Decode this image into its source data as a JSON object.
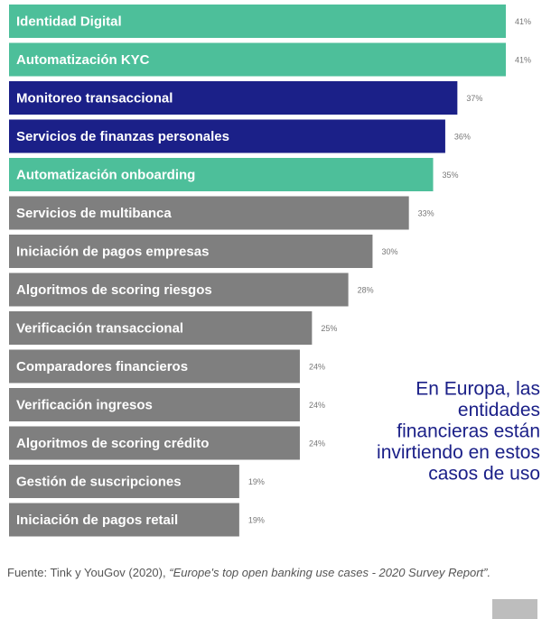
{
  "chart_data": {
    "type": "bar",
    "orientation": "horizontal",
    "categories": [
      "Identidad Digital",
      "Automatización KYC",
      "Monitoreo transaccional",
      "Servicios de finanzas personales",
      "Automatización onboarding",
      "Servicios de multibanca",
      "Iniciación de pagos empresas",
      "Algoritmos de scoring riesgos",
      "Verificación transaccional",
      "Comparadores financieros",
      "Verificación ingresos",
      "Algoritmos de scoring crédito",
      "Gestión de suscripciones",
      "Iniciación de pagos retail"
    ],
    "values": [
      41,
      41,
      37,
      36,
      35,
      33,
      30,
      28,
      25,
      24,
      24,
      24,
      19,
      19
    ],
    "value_labels": [
      "41%",
      "41%",
      "37%",
      "36%",
      "35%",
      "33%",
      "30%",
      "28%",
      "25%",
      "24%",
      "24%",
      "24%",
      "19%",
      "19%"
    ],
    "colors": [
      "#4dbf9a",
      "#4dbf9a",
      "#1b2088",
      "#1b2088",
      "#4dbf9a",
      "#7f7f7f",
      "#7f7f7f",
      "#7f7f7f",
      "#7f7f7f",
      "#7f7f7f",
      "#7f7f7f",
      "#7f7f7f",
      "#7f7f7f",
      "#7f7f7f"
    ],
    "xlim": [
      0,
      41
    ],
    "annotation": [
      "En Europa, las",
      "entidades",
      "financieras están",
      "invirtiendo en estos",
      "casos de uso"
    ],
    "source": "Fuente: Tink y YouGov (2020), ",
    "source_title": "“Europe's top open banking use cases - 2020 Survey Report”."
  }
}
